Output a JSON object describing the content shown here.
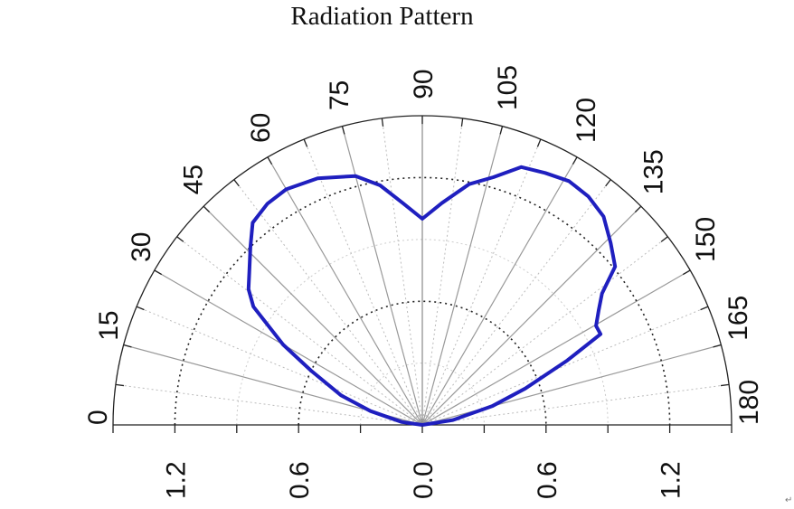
{
  "chart_data": {
    "type": "line",
    "subtype": "polar-semicircle",
    "title": "Radiation Pattern",
    "angle_unit": "degrees",
    "angle_range": [
      0,
      180
    ],
    "angle_ticks": [
      "0",
      "15",
      "30",
      "45",
      "60",
      "75",
      "90",
      "105",
      "120",
      "135",
      "150",
      "165",
      "180"
    ],
    "radial_range": [
      0,
      1.5
    ],
    "radial_tick_labels": [
      "1.2",
      "0.6",
      "0.0",
      "0.6",
      "1.2"
    ],
    "radial_tick_values": [
      1.2,
      0.6,
      0.0,
      0.6,
      1.2
    ],
    "grid": true,
    "series": [
      {
        "color": "#1f1fbf",
        "points": [
          [
            0,
            0.0
          ],
          [
            8,
            0.1
          ],
          [
            15,
            0.26
          ],
          [
            20,
            0.42
          ],
          [
            26,
            0.6
          ],
          [
            30,
            0.78
          ],
          [
            35,
            1.0
          ],
          [
            38,
            1.07
          ],
          [
            41.5,
            1.12
          ],
          [
            46,
            1.2
          ],
          [
            50,
            1.28
          ],
          [
            55,
            1.31
          ],
          [
            60,
            1.32
          ],
          [
            67,
            1.3
          ],
          [
            75,
            1.25
          ],
          [
            80,
            1.18
          ],
          [
            85,
            1.08
          ],
          [
            90,
            1.0
          ],
          [
            95,
            1.08
          ],
          [
            101,
            1.19
          ],
          [
            106,
            1.25
          ],
          [
            111,
            1.34
          ],
          [
            116,
            1.36
          ],
          [
            121,
            1.38
          ],
          [
            126,
            1.37
          ],
          [
            131,
            1.34
          ],
          [
            136,
            1.27
          ],
          [
            140.6,
            1.21
          ],
          [
            143.8,
            1.08
          ],
          [
            147,
            1.02
          ],
          [
            150.3,
            0.97
          ],
          [
            153,
            0.97
          ],
          [
            156,
            0.77
          ],
          [
            160.5,
            0.53
          ],
          [
            165,
            0.35
          ],
          [
            171,
            0.15
          ],
          [
            180,
            0.0
          ]
        ]
      }
    ]
  },
  "footer_mark": "↵"
}
